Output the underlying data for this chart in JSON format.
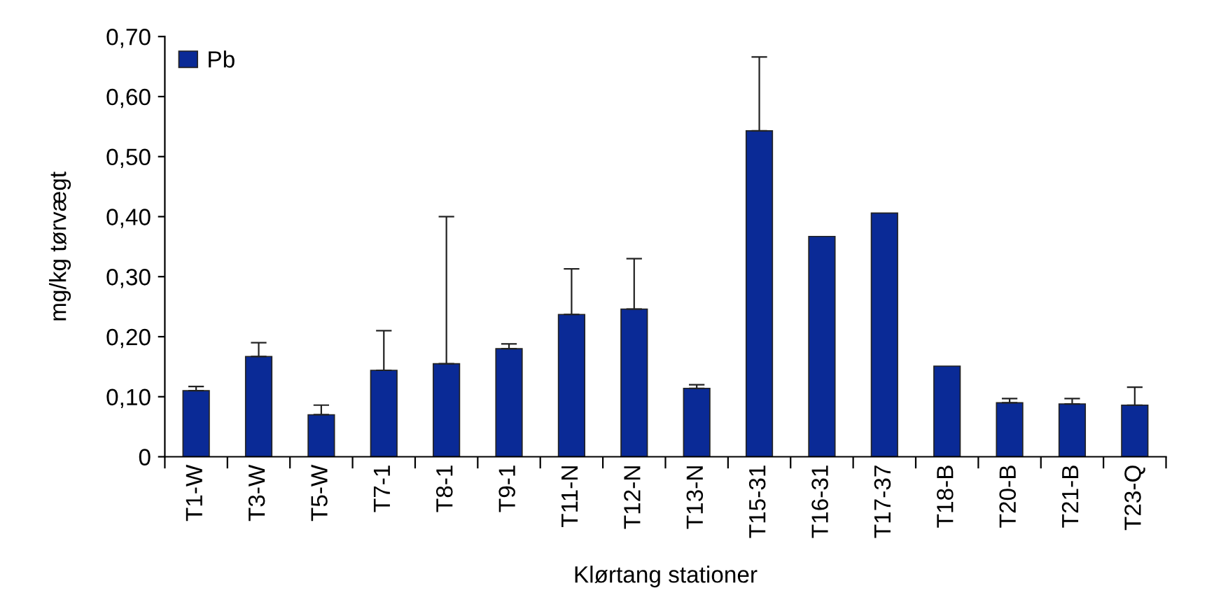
{
  "chart_data": {
    "type": "bar",
    "xlabel": "Klørtang stationer",
    "ylabel": "mg/kg tørvægt",
    "categories": [
      "T1-W",
      "T3-W",
      "T5-W",
      "T7-1",
      "T8-1",
      "T9-1",
      "T11-N",
      "T12-N",
      "T13-N",
      "T15-31",
      "T16-31",
      "T17-37",
      "T18-B",
      "T20-B",
      "T21-B",
      "T23-Q"
    ],
    "series": [
      {
        "name": "Pb",
        "color": "#0a2a96",
        "values": [
          0.11,
          0.167,
          0.07,
          0.144,
          0.155,
          0.18,
          0.237,
          0.246,
          0.114,
          0.543,
          0.367,
          0.406,
          0.151,
          0.09,
          0.088,
          0.086
        ],
        "errors": [
          [
            0.11,
            0.117
          ],
          [
            0.167,
            0.19
          ],
          [
            0.07,
            0.086
          ],
          [
            0.144,
            0.21
          ],
          [
            0.155,
            0.4
          ],
          [
            0.18,
            0.188
          ],
          [
            0.237,
            0.313
          ],
          [
            0.246,
            0.33
          ],
          [
            0.114,
            0.12
          ],
          [
            0.543,
            0.666
          ],
          null,
          null,
          null,
          [
            0.09,
            0.097
          ],
          [
            0.088,
            0.097
          ],
          [
            0.086,
            0.116
          ]
        ]
      }
    ],
    "ylim": [
      0,
      0.7
    ],
    "yticks": [
      {
        "value": 0,
        "label": "0"
      },
      {
        "value": 0.1,
        "label": "0,10"
      },
      {
        "value": 0.2,
        "label": "0,20"
      },
      {
        "value": 0.3,
        "label": "0,30"
      },
      {
        "value": 0.4,
        "label": "0,40"
      },
      {
        "value": 0.5,
        "label": "0,50"
      },
      {
        "value": 0.6,
        "label": "0,60"
      },
      {
        "value": 0.7,
        "label": "0,70"
      }
    ],
    "legend": "top left",
    "grid": false
  }
}
